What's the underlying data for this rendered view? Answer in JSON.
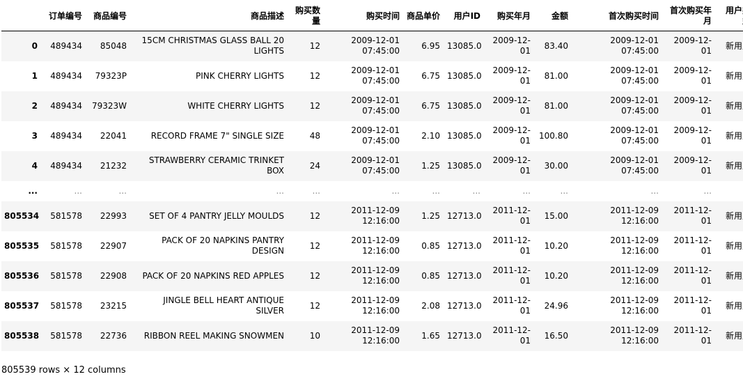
{
  "columns": [
    "",
    "订单编号",
    "商品编号",
    "商品描述",
    "购买数量",
    "购买时间",
    "商品单价",
    "用户ID",
    "购买年月",
    "金额",
    "首次购买时间",
    "首次购买年月",
    "用户类型"
  ],
  "rows": [
    [
      "0",
      "489434",
      "85048",
      "15CM CHRISTMAS GLASS BALL 20 LIGHTS",
      "12",
      "2009-12-01 07:45:00",
      "6.95",
      "13085.0",
      "2009-12-01",
      "83.40",
      "2009-12-01 07:45:00",
      "2009-12-01",
      "新用户"
    ],
    [
      "1",
      "489434",
      "79323P",
      "PINK CHERRY LIGHTS",
      "12",
      "2009-12-01 07:45:00",
      "6.75",
      "13085.0",
      "2009-12-01",
      "81.00",
      "2009-12-01 07:45:00",
      "2009-12-01",
      "新用户"
    ],
    [
      "2",
      "489434",
      "79323W",
      "WHITE CHERRY LIGHTS",
      "12",
      "2009-12-01 07:45:00",
      "6.75",
      "13085.0",
      "2009-12-01",
      "81.00",
      "2009-12-01 07:45:00",
      "2009-12-01",
      "新用户"
    ],
    [
      "3",
      "489434",
      "22041",
      "RECORD FRAME 7\" SINGLE SIZE",
      "48",
      "2009-12-01 07:45:00",
      "2.10",
      "13085.0",
      "2009-12-01",
      "100.80",
      "2009-12-01 07:45:00",
      "2009-12-01",
      "新用户"
    ],
    [
      "4",
      "489434",
      "21232",
      "STRAWBERRY CERAMIC TRINKET BOX",
      "24",
      "2009-12-01 07:45:00",
      "1.25",
      "13085.0",
      "2009-12-01",
      "30.00",
      "2009-12-01 07:45:00",
      "2009-12-01",
      "新用户"
    ],
    [
      "...",
      "...",
      "...",
      "...",
      "...",
      "...",
      "...",
      "...",
      "...",
      "...",
      "...",
      "...",
      "..."
    ],
    [
      "805534",
      "581578",
      "22993",
      "SET OF 4 PANTRY JELLY MOULDS",
      "12",
      "2011-12-09 12:16:00",
      "1.25",
      "12713.0",
      "2011-12-01",
      "15.00",
      "2011-12-09 12:16:00",
      "2011-12-01",
      "新用户"
    ],
    [
      "805535",
      "581578",
      "22907",
      "PACK OF 20 NAPKINS PANTRY DESIGN",
      "12",
      "2011-12-09 12:16:00",
      "0.85",
      "12713.0",
      "2011-12-01",
      "10.20",
      "2011-12-09 12:16:00",
      "2011-12-01",
      "新用户"
    ],
    [
      "805536",
      "581578",
      "22908",
      "PACK OF 20 NAPKINS RED APPLES",
      "12",
      "2011-12-09 12:16:00",
      "0.85",
      "12713.0",
      "2011-12-01",
      "10.20",
      "2011-12-09 12:16:00",
      "2011-12-01",
      "新用户"
    ],
    [
      "805537",
      "581578",
      "23215",
      "JINGLE BELL HEART ANTIQUE SILVER",
      "12",
      "2011-12-09 12:16:00",
      "2.08",
      "12713.0",
      "2011-12-01",
      "24.96",
      "2011-12-09 12:16:00",
      "2011-12-01",
      "新用户"
    ],
    [
      "805538",
      "581578",
      "22736",
      "RIBBON REEL MAKING SNOWMEN",
      "10",
      "2011-12-09 12:16:00",
      "1.65",
      "12713.0",
      "2011-12-01",
      "16.50",
      "2011-12-09 12:16:00",
      "2011-12-01",
      "新用户"
    ]
  ],
  "footer": {
    "shape": "805539 rows × 12 columns"
  }
}
